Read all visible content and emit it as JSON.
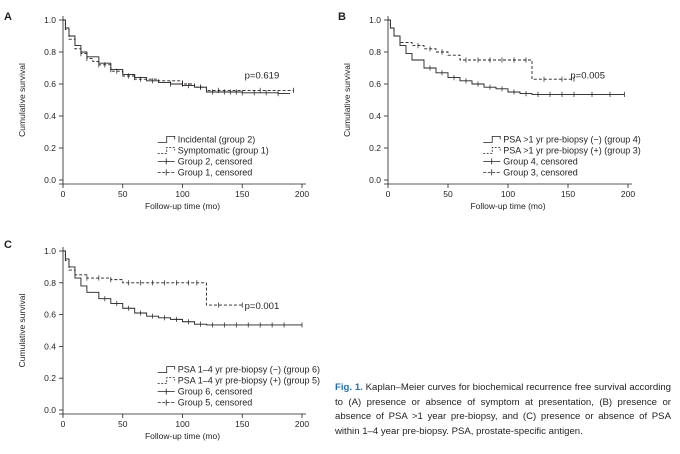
{
  "figure": {
    "caption_label": "Fig. 1.",
    "caption_text": " Kaplan–Meier curves for biochemical recurrence free survival according to (A) presence or absence of symptom at presentation, (B) presence or absence of PSA >1 year pre-biopsy, and (C) presence or absence of PSA within 1–4 year pre-biopsy. PSA, prostate-specific antigen."
  },
  "chart_data": [
    {
      "panel": "A",
      "type": "line",
      "step": true,
      "xlabel": "Follow-up time (mo)",
      "ylabel": "Cumulative survival",
      "xlim": [
        0,
        200
      ],
      "ylim": [
        0,
        1.0
      ],
      "xticks": [
        0,
        50,
        100,
        150,
        200
      ],
      "yticks": [
        0.0,
        0.2,
        0.4,
        0.6,
        0.8,
        1.0
      ],
      "annotation": "p=0.619",
      "legend_position": "bottom-right",
      "legend": [
        "Incidental (group 2)",
        "Symptomatic (group 1)",
        "Group 2, censored",
        "Group 1, censored"
      ],
      "series": [
        {
          "name": "Incidental (group 2)",
          "style": "solid",
          "x": [
            0,
            2,
            5,
            10,
            15,
            20,
            30,
            40,
            50,
            60,
            70,
            80,
            90,
            100,
            110,
            120,
            150,
            180,
            190
          ],
          "y": [
            1.0,
            0.95,
            0.9,
            0.84,
            0.8,
            0.77,
            0.73,
            0.69,
            0.66,
            0.64,
            0.62,
            0.61,
            0.6,
            0.59,
            0.58,
            0.55,
            0.545,
            0.54,
            0.54
          ],
          "censored": [
            40,
            60,
            75,
            90,
            105,
            115,
            125,
            135,
            140,
            145,
            150,
            160,
            170,
            180
          ]
        },
        {
          "name": "Symptomatic (group 1)",
          "style": "dashed",
          "x": [
            0,
            2,
            5,
            10,
            15,
            20,
            25,
            30,
            40,
            50,
            60,
            80,
            100,
            110,
            120,
            180,
            193
          ],
          "y": [
            1.0,
            0.94,
            0.88,
            0.82,
            0.79,
            0.76,
            0.74,
            0.72,
            0.68,
            0.65,
            0.63,
            0.62,
            0.6,
            0.58,
            0.56,
            0.56,
            0.56
          ],
          "censored": [
            15,
            20,
            30,
            35,
            45,
            55,
            65,
            100,
            115,
            130,
            165,
            193
          ]
        }
      ]
    },
    {
      "panel": "B",
      "type": "line",
      "step": true,
      "xlabel": "Follow-up time (mo)",
      "ylabel": "Cumulative survival",
      "xlim": [
        0,
        200
      ],
      "ylim": [
        0,
        1.0
      ],
      "xticks": [
        0,
        50,
        100,
        150,
        200
      ],
      "yticks": [
        0.0,
        0.2,
        0.4,
        0.6,
        0.8,
        1.0
      ],
      "annotation": "p=0.005",
      "legend_position": "bottom-right",
      "legend": [
        "PSA >1 yr pre-biopsy (−) (group 4)",
        "PSA >1 yr pre-biopsy (+) (group 3)",
        "Group 4, censored",
        "Group 3, censored"
      ],
      "series": [
        {
          "name": "PSA >1 yr pre-biopsy (−) (group 4)",
          "style": "solid",
          "x": [
            0,
            2,
            5,
            10,
            15,
            20,
            30,
            40,
            50,
            60,
            70,
            80,
            90,
            100,
            110,
            120,
            150,
            180,
            197
          ],
          "y": [
            1.0,
            0.95,
            0.9,
            0.84,
            0.79,
            0.75,
            0.7,
            0.67,
            0.64,
            0.62,
            0.6,
            0.58,
            0.57,
            0.55,
            0.54,
            0.535,
            0.535,
            0.535,
            0.535
          ],
          "censored": [
            35,
            45,
            55,
            65,
            75,
            85,
            95,
            105,
            115,
            125,
            135,
            145,
            155,
            170,
            185,
            197
          ]
        },
        {
          "name": "PSA >1 yr pre-biopsy (+) (group 3)",
          "style": "dashed",
          "x": [
            0,
            2,
            5,
            10,
            20,
            30,
            40,
            50,
            60,
            118,
            120,
            155
          ],
          "y": [
            1.0,
            0.95,
            0.9,
            0.86,
            0.84,
            0.82,
            0.8,
            0.78,
            0.75,
            0.75,
            0.63,
            0.63
          ],
          "censored": [
            25,
            35,
            45,
            65,
            75,
            85,
            95,
            105,
            115,
            130,
            145,
            155
          ]
        }
      ]
    },
    {
      "panel": "C",
      "type": "line",
      "step": true,
      "xlabel": "Follow-up time (mo)",
      "ylabel": "Cumulative survival",
      "xlim": [
        0,
        200
      ],
      "ylim": [
        0,
        1.0
      ],
      "xticks": [
        0,
        50,
        100,
        150,
        200
      ],
      "yticks": [
        0.0,
        0.2,
        0.4,
        0.6,
        0.8,
        1.0
      ],
      "annotation": "p=0.001",
      "legend_position": "bottom-right",
      "legend": [
        "PSA 1–4 yr pre-biopsy (−) (group 6)",
        "PSA 1–4 yr pre-biopsy (+) (group 5)",
        "Group 6, censored",
        "Group 5, censored"
      ],
      "series": [
        {
          "name": "PSA 1–4 yr pre-biopsy (−) (group 6)",
          "style": "solid",
          "x": [
            0,
            2,
            5,
            10,
            15,
            20,
            30,
            40,
            50,
            60,
            70,
            80,
            90,
            100,
            110,
            120,
            150,
            200
          ],
          "y": [
            1.0,
            0.95,
            0.9,
            0.83,
            0.78,
            0.74,
            0.7,
            0.67,
            0.64,
            0.61,
            0.59,
            0.58,
            0.57,
            0.555,
            0.54,
            0.535,
            0.535,
            0.535
          ],
          "censored": [
            35,
            45,
            55,
            65,
            75,
            85,
            95,
            105,
            115,
            125,
            135,
            145,
            155,
            165,
            175,
            185,
            200
          ]
        },
        {
          "name": "PSA 1–4 yr pre-biopsy (+) (group 5)",
          "style": "dashed",
          "x": [
            0,
            2,
            5,
            10,
            20,
            40,
            50,
            115,
            120,
            150
          ],
          "y": [
            1.0,
            0.94,
            0.88,
            0.85,
            0.83,
            0.82,
            0.8,
            0.8,
            0.66,
            0.66
          ],
          "censored": [
            20,
            30,
            40,
            55,
            65,
            75,
            85,
            95,
            105,
            112,
            130,
            150
          ]
        }
      ]
    }
  ]
}
